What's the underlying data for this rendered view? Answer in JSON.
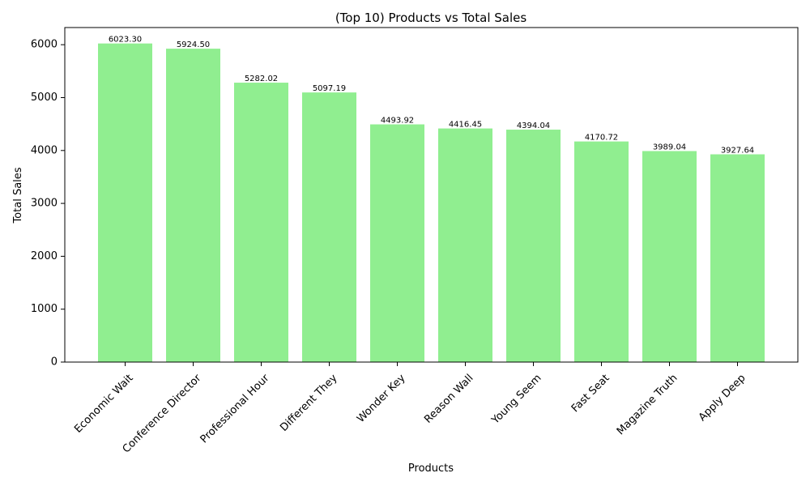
{
  "chart_data": {
    "type": "bar",
    "title": "(Top 10) Products vs Total Sales",
    "xlabel": "Products",
    "ylabel": "Total Sales",
    "categories": [
      "Economic Wait",
      "Conference Director",
      "Professional Hour",
      "Different They",
      "Wonder Key",
      "Reason Wall",
      "Young Seem",
      "Fast Seat",
      "Magazine Truth",
      "Apply Deep"
    ],
    "values": [
      6023.3,
      5924.5,
      5282.02,
      5097.19,
      4493.92,
      4416.45,
      4394.04,
      4170.72,
      3989.04,
      3927.64
    ],
    "data_labels": [
      "6023.30",
      "5924.50",
      "5282.02",
      "5097.19",
      "4493.92",
      "4416.45",
      "4394.04",
      "4170.72",
      "3989.04",
      "3927.64"
    ],
    "ylim": [
      0,
      6324.47
    ],
    "yticks": [
      0,
      1000,
      2000,
      3000,
      4000,
      5000,
      6000
    ],
    "ytick_labels": [
      "0",
      "1000",
      "2000",
      "3000",
      "4000",
      "5000",
      "6000"
    ],
    "bar_color": "#90ee90",
    "grid": false,
    "xtick_rotation_deg": 45
  }
}
